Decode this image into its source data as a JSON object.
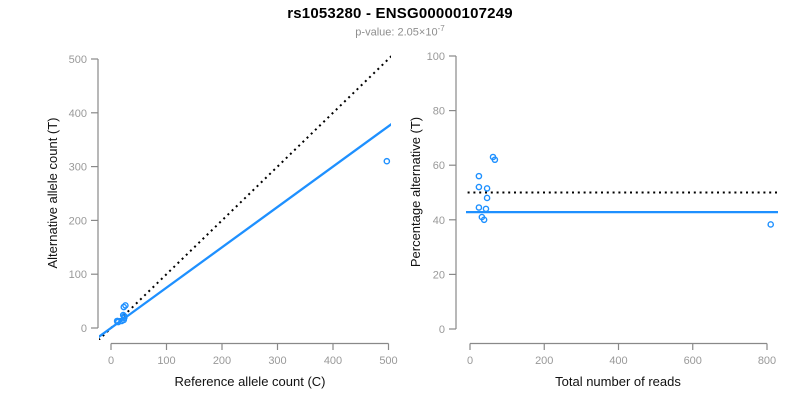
{
  "header": {
    "title": "rs1053280 - ENSG00000107249",
    "pvalue_prefix": "p-value: 2.05×10",
    "pvalue_exponent": "-7"
  },
  "colors": {
    "accent_blue": "#1E90FF",
    "dotted_black": "#000000",
    "axis_line_gray": "#898989",
    "tick_label_gray": "#999999",
    "axis_title_color": "#111111",
    "title_color": "#000000",
    "subtitle_gray": "#8e8e8e",
    "background": "#ffffff"
  },
  "chart_data": [
    {
      "type": "scatter",
      "panel": "left",
      "xlabel": "Reference allele count (C)",
      "ylabel": "Alternative allele count (T)",
      "xlim": [
        0,
        500
      ],
      "ylim": [
        0,
        500
      ],
      "xticks": [
        0,
        100,
        200,
        300,
        400,
        500
      ],
      "yticks": [
        0,
        100,
        200,
        300,
        400,
        500
      ],
      "grid": false,
      "legend": null,
      "marker": "open-circle",
      "points": [
        [
          23,
          39
        ],
        [
          26,
          42
        ],
        [
          11,
          13
        ],
        [
          12,
          13
        ],
        [
          22,
          24
        ],
        [
          24,
          22
        ],
        [
          13,
          11
        ],
        [
          24,
          19
        ],
        [
          19,
          13
        ],
        [
          23,
          15
        ],
        [
          497,
          310
        ]
      ],
      "lines": [
        {
          "name": "identity-line",
          "type": "abline",
          "intercept": 0,
          "slope": 1,
          "style": "dotted",
          "color": "#000000"
        },
        {
          "name": "fit-line",
          "type": "abline",
          "intercept": 0,
          "slope": 0.75,
          "style": "solid",
          "color": "#1E90FF"
        }
      ]
    },
    {
      "type": "scatter",
      "panel": "right",
      "xlabel": "Total number of reads",
      "ylabel": "Percentage alternative (T)",
      "xlim": [
        0,
        800
      ],
      "ylim": [
        0,
        100
      ],
      "xticks": [
        0,
        200,
        400,
        600,
        800
      ],
      "yticks": [
        0,
        20,
        40,
        60,
        80,
        100
      ],
      "grid": false,
      "legend": null,
      "marker": "open-circle",
      "points": [
        [
          62,
          63
        ],
        [
          67,
          62
        ],
        [
          24,
          56
        ],
        [
          24,
          52
        ],
        [
          46,
          51.5
        ],
        [
          46,
          48
        ],
        [
          24,
          44.5
        ],
        [
          43,
          44
        ],
        [
          32,
          41
        ],
        [
          38,
          40
        ],
        [
          810,
          38.3
        ]
      ],
      "lines": [
        {
          "name": "expected-balance-line",
          "type": "hline",
          "y": 50,
          "style": "dotted",
          "color": "#000000"
        },
        {
          "name": "observed-ratio-line",
          "type": "hline",
          "y": 42.8,
          "style": "solid",
          "color": "#1E90FF"
        }
      ]
    }
  ]
}
